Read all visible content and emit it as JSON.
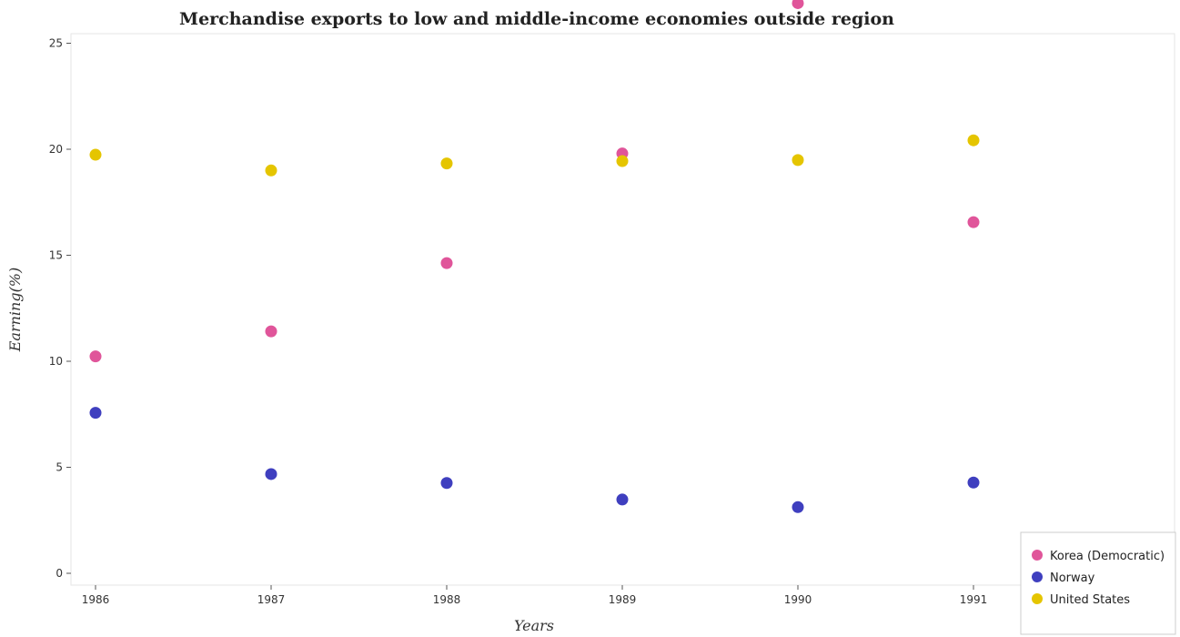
{
  "chart_data": {
    "type": "scatter",
    "title": "Merchandise exports to low and middle-income economies outside region",
    "xlabel": "Years",
    "ylabel": "Earning(%)",
    "categories": [
      "1986",
      "1987",
      "1988",
      "1989",
      "1990",
      "1991"
    ],
    "ylim": [
      0,
      28
    ],
    "yticks": [
      0,
      5,
      10,
      15,
      20,
      25
    ],
    "grid": false,
    "legend_position": "bottom-right",
    "series": [
      {
        "name": "Korea (Democratic)",
        "color": "#e0559a",
        "values": [
          10.23,
          11.41,
          14.63,
          19.8,
          26.89,
          16.56
        ]
      },
      {
        "name": "Norway",
        "color": "#3f3fbf",
        "values": [
          7.57,
          4.68,
          4.26,
          3.48,
          3.12,
          4.28
        ]
      },
      {
        "name": "United States",
        "color": "#e5c500",
        "values": [
          19.74,
          19.0,
          19.33,
          19.44,
          19.49,
          20.42
        ]
      }
    ]
  }
}
